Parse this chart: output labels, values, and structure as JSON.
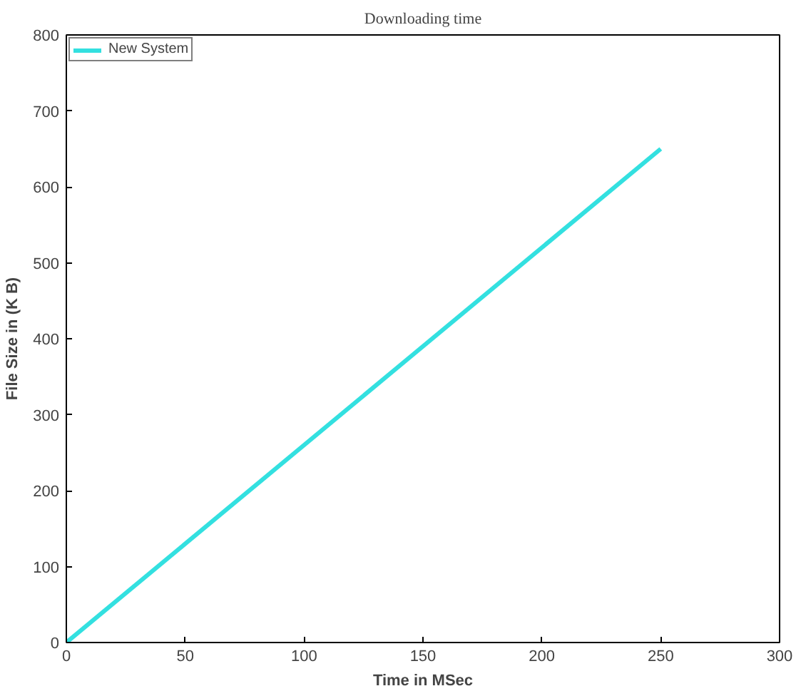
{
  "chart_data": {
    "type": "line",
    "title": "Downloading time",
    "xlabel": "Time in MSec",
    "ylabel": "File Size in (K B)",
    "x": [
      0,
      250
    ],
    "series": [
      {
        "name": "New System",
        "color": "#33e0e0",
        "values": [
          0,
          650
        ]
      }
    ],
    "xlim": [
      0,
      300
    ],
    "xticks": [
      0,
      50,
      100,
      150,
      200,
      250,
      300
    ],
    "ylim": [
      0,
      800
    ],
    "yticks": [
      0,
      100,
      200,
      300,
      400,
      500,
      600,
      700,
      800
    ],
    "grid": false,
    "legend": "top left",
    "line_style": "solid"
  }
}
